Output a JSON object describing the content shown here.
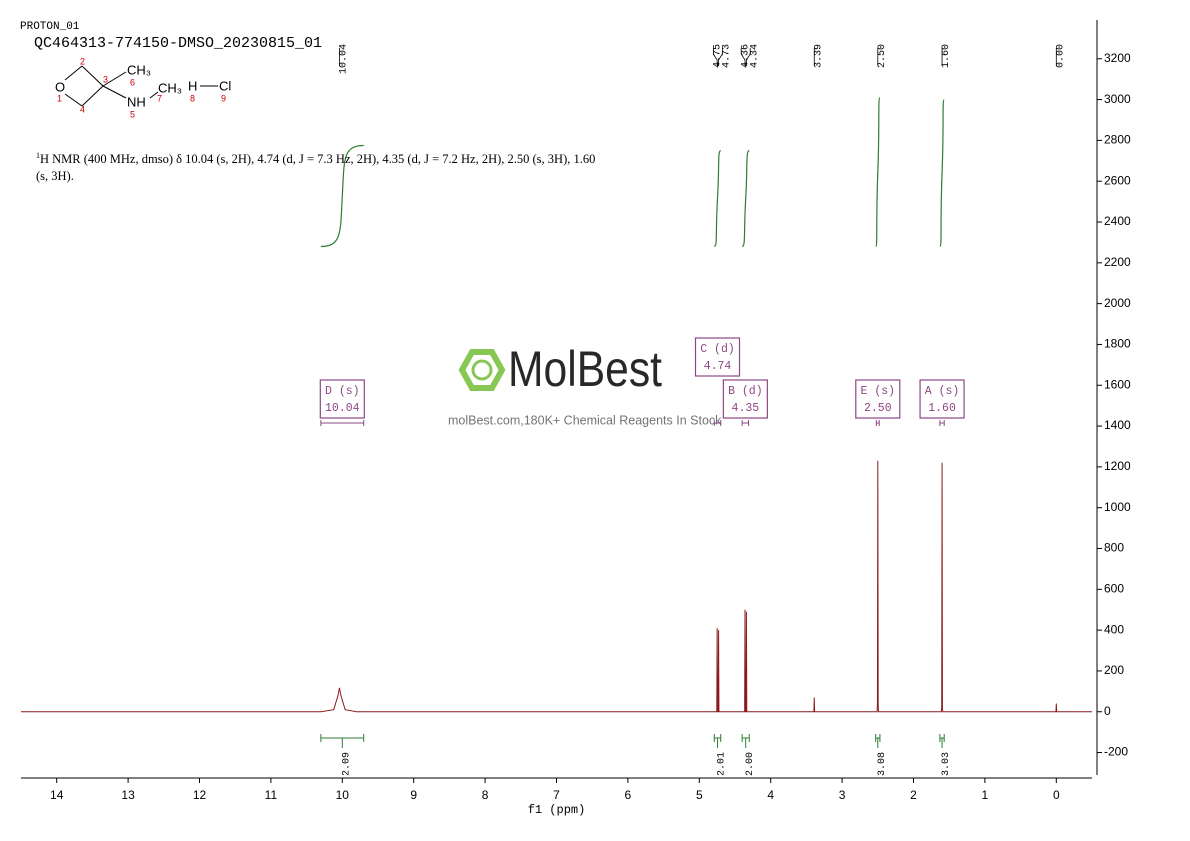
{
  "header": {
    "experiment": "PROTON_01",
    "sample": "QC464313-774150-DMSO_20230815_01"
  },
  "molecule": {
    "atoms": [
      {
        "label": "O",
        "number": 1
      },
      {
        "number": 2
      },
      {
        "number": 3
      },
      {
        "number": 4
      },
      {
        "label": "NH",
        "number": 5
      },
      {
        "label": "CH₃",
        "number": 6
      },
      {
        "label": "CH₃",
        "number": 7
      },
      {
        "label": "H",
        "number": 8
      },
      {
        "label": "Cl",
        "number": 9
      }
    ]
  },
  "description": {
    "isotope": "1",
    "text": "H NMR (400 MHz, dmso) δ 10.04 (s, 2H), 4.74 (d, J = 7.3 Hz, 2H), 4.35 (d, J = 7.2 Hz, 2H), 2.50 (s, 3H), 1.60 (s, 3H)."
  },
  "watermark": {
    "brand": "MolBest",
    "tagline": "molBest.com,180K+ Chemical Reagents In Stock"
  },
  "chart_data": {
    "type": "line",
    "x_label": "f1 (ppm)",
    "xlim": [
      14.5,
      -0.5
    ],
    "xticks": [
      14,
      13,
      12,
      11,
      10,
      9,
      8,
      7,
      6,
      5,
      4,
      3,
      2,
      1,
      0
    ],
    "ylim": [
      -310,
      3390
    ],
    "yticks": [
      -200,
      0,
      200,
      400,
      600,
      800,
      1000,
      1200,
      1400,
      1600,
      1800,
      2000,
      2200,
      2400,
      2600,
      2800,
      3000,
      3200
    ],
    "series": [
      {
        "color": "#8b1a1a",
        "x": [
          14.5,
          10.3,
          10.12,
          10.06,
          10.04,
          10.02,
          9.96,
          9.8,
          4.8,
          4.755,
          4.75,
          4.745,
          4.735,
          4.73,
          4.725,
          4.37,
          4.365,
          4.36,
          4.355,
          4.345,
          4.34,
          4.335,
          3.4,
          3.395,
          3.39,
          3.385,
          2.51,
          2.505,
          2.5,
          2.495,
          2.49,
          1.61,
          1.605,
          1.6,
          1.595,
          1.59,
          0.005,
          0,
          -0.005,
          -0.5
        ],
        "values": [
          0,
          0,
          10,
          80,
          117,
          80,
          10,
          0,
          0,
          0,
          410,
          0,
          0,
          400,
          0,
          0,
          0,
          500,
          0,
          0,
          490,
          0,
          0,
          0,
          70,
          0,
          0,
          40,
          1230,
          40,
          0,
          0,
          20,
          1220,
          20,
          0,
          0,
          40,
          0,
          0
        ]
      }
    ],
    "peak_labels": [
      10.04,
      4.75,
      4.73,
      4.36,
      4.34,
      3.39,
      {
        "value": 2.5,
        "label": "2.50"
      },
      {
        "value": 1.6,
        "label": "1.60"
      },
      {
        "value": 0,
        "label": "0.00"
      }
    ],
    "integral_color": "#2e7d32",
    "integrals": [
      {
        "range": [
          10.3,
          9.7
        ],
        "value": 2.09,
        "curve": [
          2280,
          2775
        ]
      },
      {
        "range": [
          4.79,
          4.7
        ],
        "value": 2.01,
        "curve": [
          2280,
          2750
        ]
      },
      {
        "range": [
          4.4,
          4.3
        ],
        "value": 2,
        "label": "2.00",
        "curve": [
          2280,
          2750
        ]
      },
      {
        "range": [
          2.53,
          2.47
        ],
        "value": 3.08,
        "curve": [
          2280,
          3010
        ]
      },
      {
        "range": [
          1.63,
          1.57
        ],
        "value": 3.03,
        "curve": [
          2280,
          3000
        ]
      }
    ],
    "multiplet_color": "#8e4585",
    "multiplets": [
      {
        "name": "D (s)",
        "shift": "10.04",
        "range": [
          10.3,
          9.7
        ]
      },
      {
        "name": "C (d)",
        "shift": "4.74",
        "range": [
          4.79,
          4.7
        ]
      },
      {
        "name": "B (d)",
        "shift": "4.35",
        "range": [
          4.4,
          4.31
        ]
      },
      {
        "name": "E (s)",
        "shift": "2.50",
        "range": [
          2.52,
          2.48
        ]
      },
      {
        "name": "A (s)",
        "shift": "1.60",
        "range": [
          1.63,
          1.57
        ]
      }
    ]
  }
}
